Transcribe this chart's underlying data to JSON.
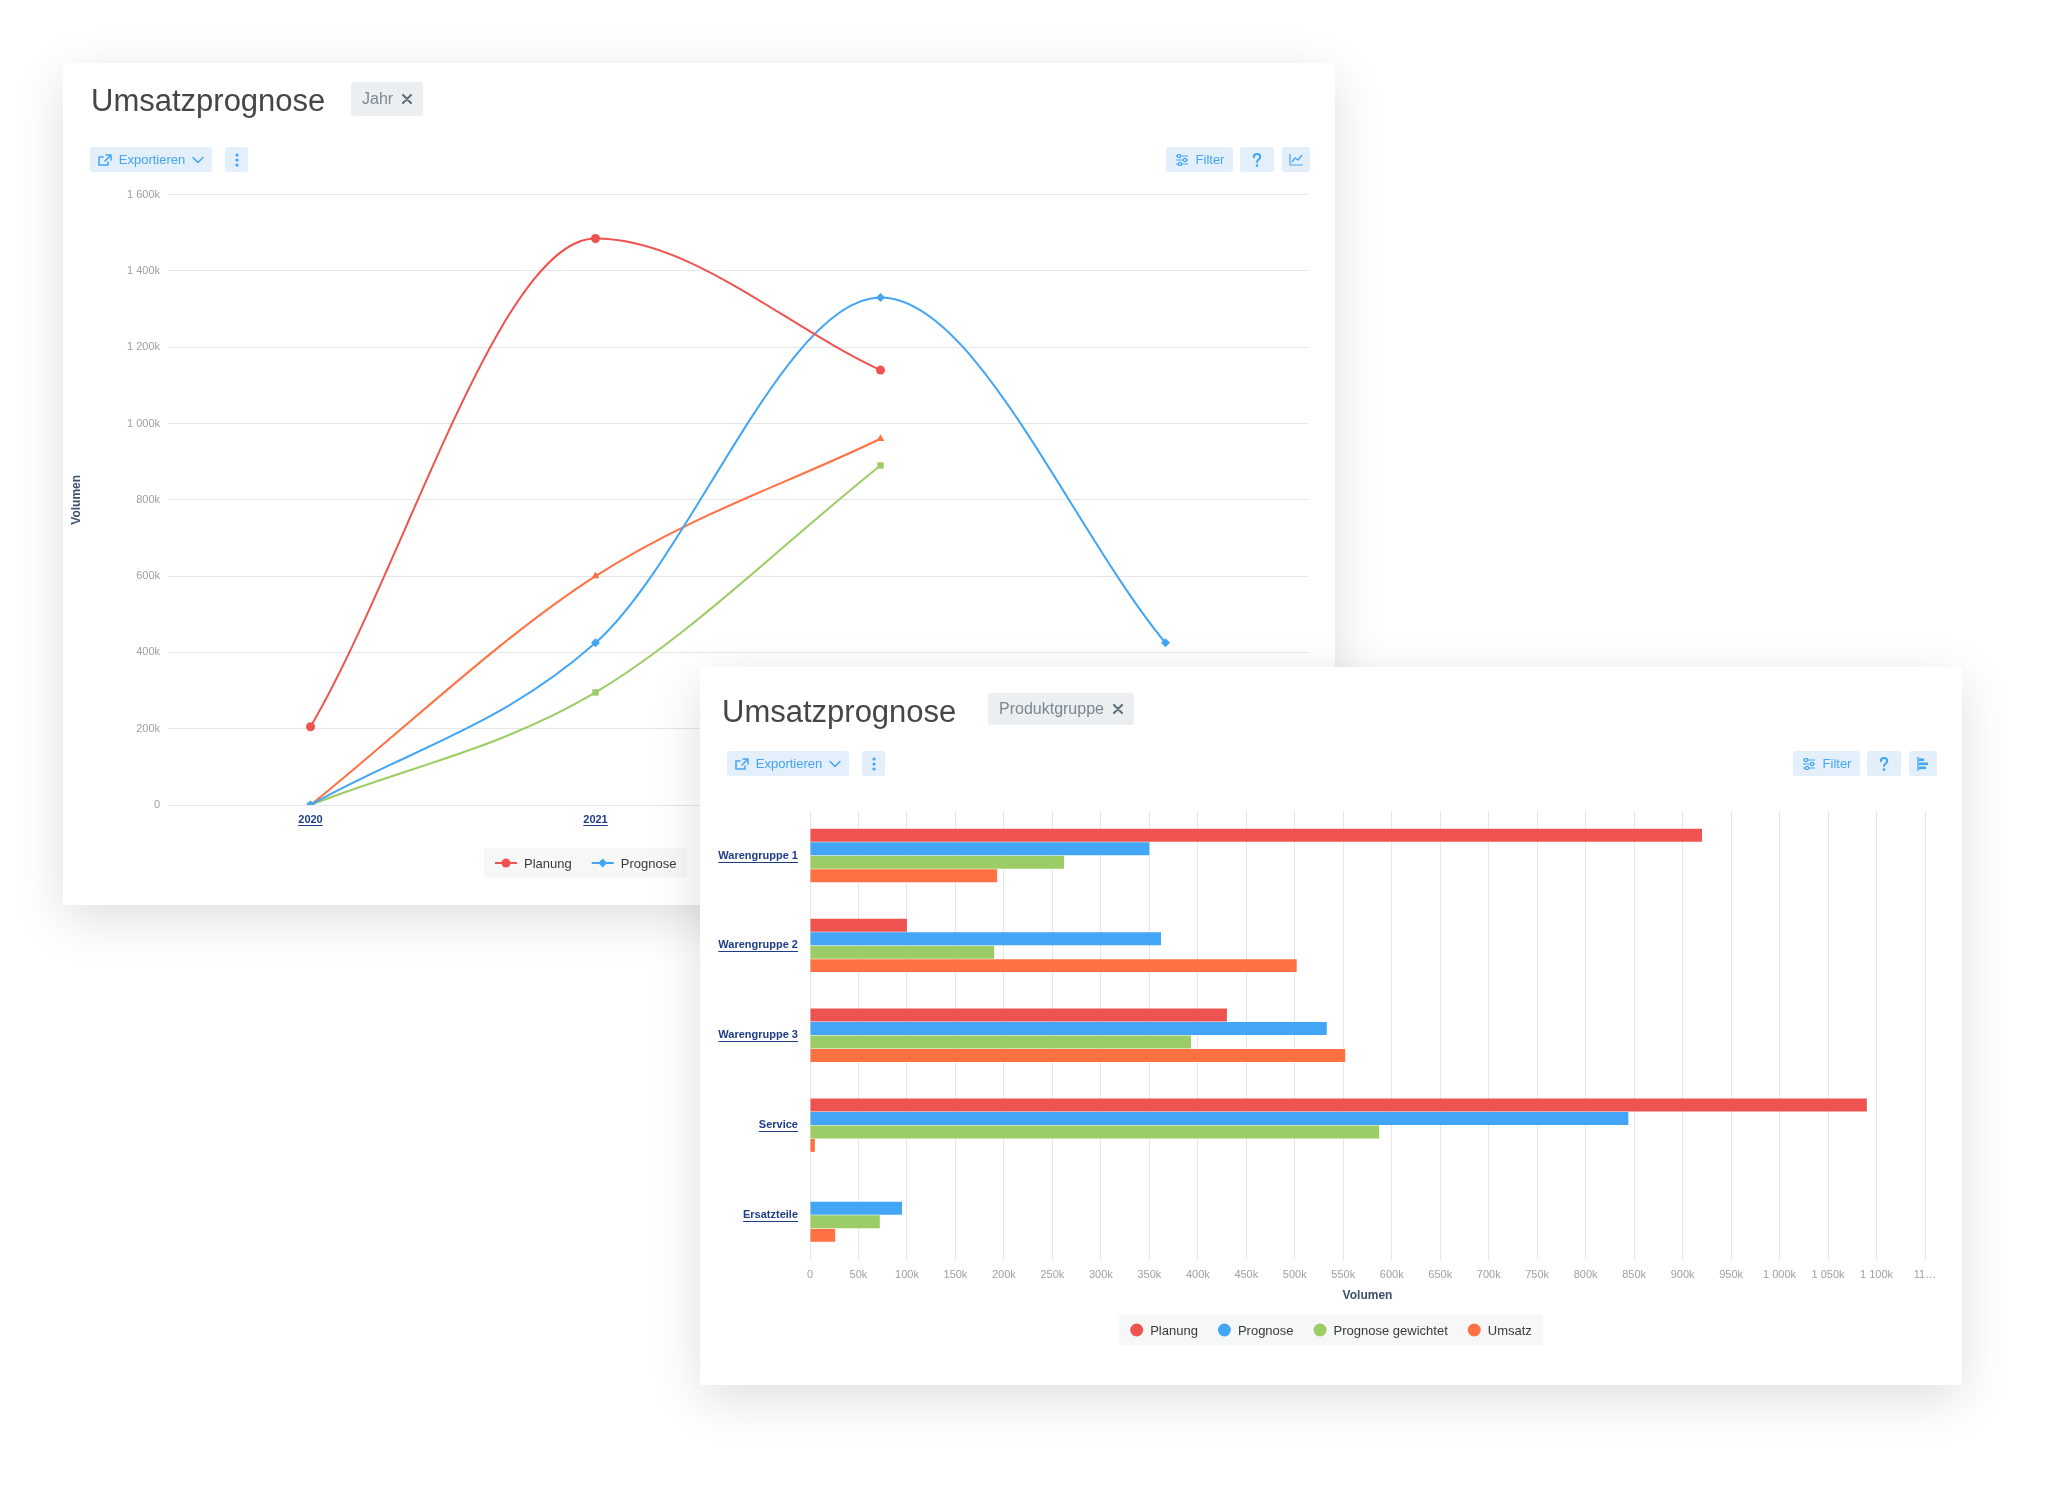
{
  "chart_data": [
    {
      "type": "line",
      "title": "Umsatzprognose",
      "ylabel": "Volumen",
      "annotations": [
        "Jahr",
        "Exportieren",
        "Filter"
      ],
      "categories": [
        "2020",
        "2021",
        null,
        null
      ],
      "series": [
        {
          "name": "Planung",
          "color": "#ef5350",
          "marker": "circle",
          "values": [
            205000,
            1485000,
            1140000,
            null
          ]
        },
        {
          "name": "Prognose",
          "color": "#42a5f5",
          "marker": "diamond",
          "values": [
            0,
            425000,
            1330000,
            425000
          ]
        },
        {
          "color": "#9ccc65",
          "marker": "square",
          "values": [
            0,
            295000,
            890000,
            null
          ]
        },
        {
          "color": "#ff7043",
          "marker": "triangle",
          "values": [
            0,
            600000,
            960000,
            null
          ]
        }
      ],
      "ylim": [
        0,
        1600000
      ],
      "yticks": [
        0,
        {
          "value": 200000,
          "label": "200k"
        },
        {
          "value": 400000,
          "label": "400k"
        },
        {
          "value": 600000,
          "label": "600k"
        },
        {
          "value": 800000,
          "label": "800k"
        },
        {
          "value": 1000000,
          "label": "1 000k"
        },
        {
          "value": 1200000,
          "label": "1 200k"
        },
        {
          "value": 1400000,
          "label": "1 400k"
        },
        {
          "value": 1600000,
          "label": "1 600k"
        }
      ],
      "grid": "y",
      "legend": "bottom"
    },
    {
      "type": "bar",
      "orientation": "horizontal",
      "title": "Umsatzprognose",
      "xlabel": "Volumen",
      "annotations": [
        "Produktgruppe",
        "Exportieren",
        "Filter"
      ],
      "categories": [
        "Warengruppe 1",
        "Warengruppe 2",
        "Warengruppe 3",
        "Service",
        "Ersatzteile"
      ],
      "series": [
        {
          "name": "Planung",
          "color": "#ef5350",
          "values": [
            920000,
            100000,
            430000,
            1090000,
            null
          ]
        },
        {
          "name": "Prognose",
          "color": "#42a5f5",
          "values": [
            350000,
            362000,
            533000,
            844000,
            95000
          ]
        },
        {
          "name": "Prognose gewichtet",
          "color": "#9ccc65",
          "values": [
            262000,
            190000,
            393000,
            587000,
            72000
          ]
        },
        {
          "name": "Umsatz",
          "color": "#ff7043",
          "values": [
            193000,
            502000,
            552000,
            5000,
            26000
          ]
        }
      ],
      "xlim": [
        0,
        1150000
      ],
      "xticks": [
        0,
        {
          "value": 50000,
          "label": "50k"
        },
        {
          "value": 100000,
          "label": "100k"
        },
        {
          "value": 150000,
          "label": "150k"
        },
        {
          "value": 200000,
          "label": "200k"
        },
        {
          "value": 250000,
          "label": "250k"
        },
        {
          "value": 300000,
          "label": "300k"
        },
        {
          "value": 350000,
          "label": "350k"
        },
        {
          "value": 400000,
          "label": "400k"
        },
        {
          "value": 450000,
          "label": "450k"
        },
        {
          "value": 500000,
          "label": "500k"
        },
        {
          "value": 550000,
          "label": "550k"
        },
        {
          "value": 600000,
          "label": "600k"
        },
        {
          "value": 650000,
          "label": "650k"
        },
        {
          "value": 700000,
          "label": "700k"
        },
        {
          "value": 750000,
          "label": "750k"
        },
        {
          "value": 800000,
          "label": "800k"
        },
        {
          "value": 850000,
          "label": "850k"
        },
        {
          "value": 900000,
          "label": "900k"
        },
        {
          "value": 950000,
          "label": "950k"
        },
        {
          "value": 1000000,
          "label": "1 000k"
        },
        {
          "value": 1050000,
          "label": "1 050k"
        },
        {
          "value": 1100000,
          "label": "1 100k"
        },
        {
          "value": 1150000,
          "label": "11…"
        }
      ],
      "grid": "x",
      "legend": "bottom"
    }
  ]
}
